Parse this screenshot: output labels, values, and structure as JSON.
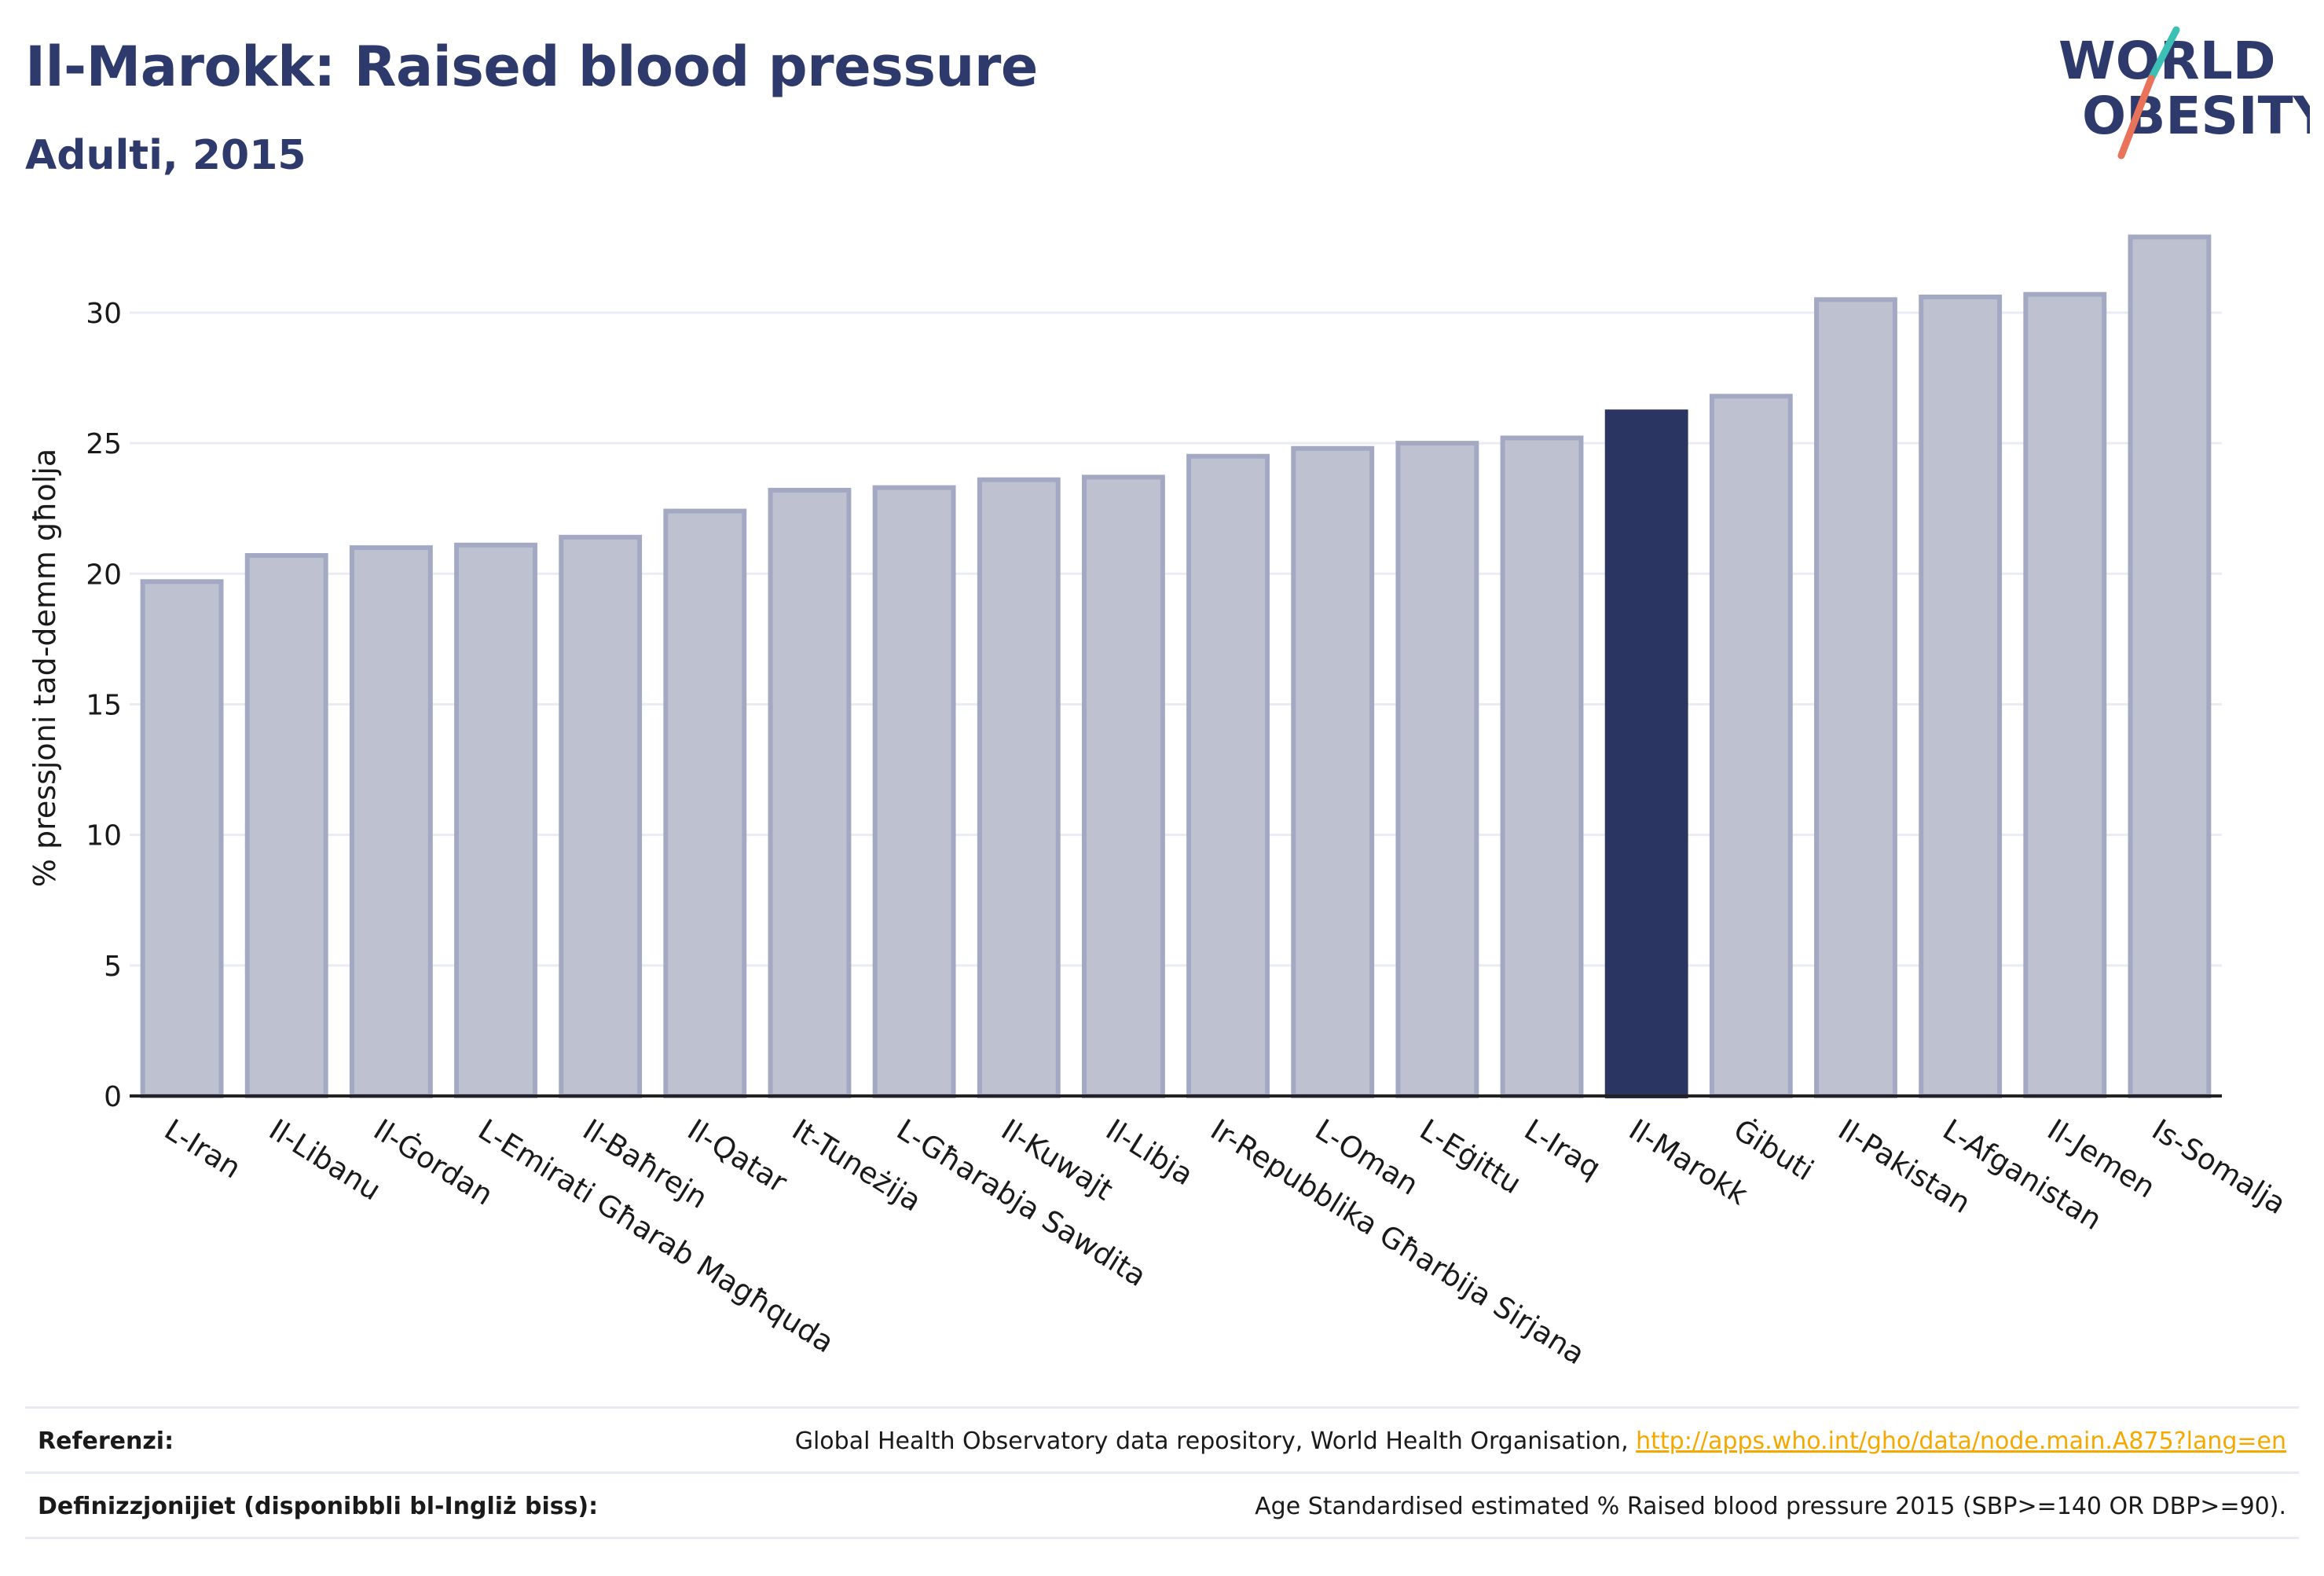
{
  "header": {
    "title": "Il-Marokk: Raised blood pressure",
    "subtitle": "Adulti, 2015"
  },
  "logo": {
    "line1": "WORLD",
    "line2": "OBESITY"
  },
  "chart_data": {
    "type": "bar",
    "ylabel": "% pressjoni tad-demm għolja",
    "ylim": [
      0,
      34
    ],
    "yticks": [
      0,
      5,
      10,
      15,
      20,
      25,
      30
    ],
    "grid": true,
    "categories": [
      "L-Iran",
      "Il-Libanu",
      "Il-Ġordan",
      "L-Emirati Għarab Magħquda",
      "Il-Baħrejn",
      "Il-Qatar",
      "It-Tuneżija",
      "L-Għarabja Sawdita",
      "Il-Kuwajt",
      "Il-Libja",
      "Ir-Repubblika Għarbija Sirjana",
      "L-Oman",
      "L-Eġittu",
      "L-Iraq",
      "Il-Marokk",
      "Ġibuti",
      "Il-Pakistan",
      "L-Afganistan",
      "Il-Jemen",
      "Is-Somalja"
    ],
    "values": [
      19.7,
      20.7,
      21.0,
      21.1,
      21.4,
      22.4,
      23.2,
      23.3,
      23.6,
      23.7,
      24.5,
      24.8,
      25.0,
      25.2,
      26.2,
      26.8,
      30.5,
      30.6,
      30.7,
      32.9
    ],
    "highlight": "Il-Marokk",
    "colors": {
      "bar": "#bec2d0",
      "bar_edge": "#a3a9c2",
      "highlight": "#2b3561",
      "grid": "#e9ecf3",
      "axis": "#222222"
    }
  },
  "footer": {
    "references_label": "Referenzi:",
    "references_text": "Global Health Observatory data repository, World Health Organisation, ",
    "references_link": "http://apps.who.int/gho/data/node.main.A875?lang=en",
    "definitions_label": "Definizzjonijiet (disponibbli bl-Ingliż biss):",
    "definitions_text": "Age Standardised estimated % Raised blood pressure 2015 (SBP>=140 OR DBP>=90)."
  }
}
